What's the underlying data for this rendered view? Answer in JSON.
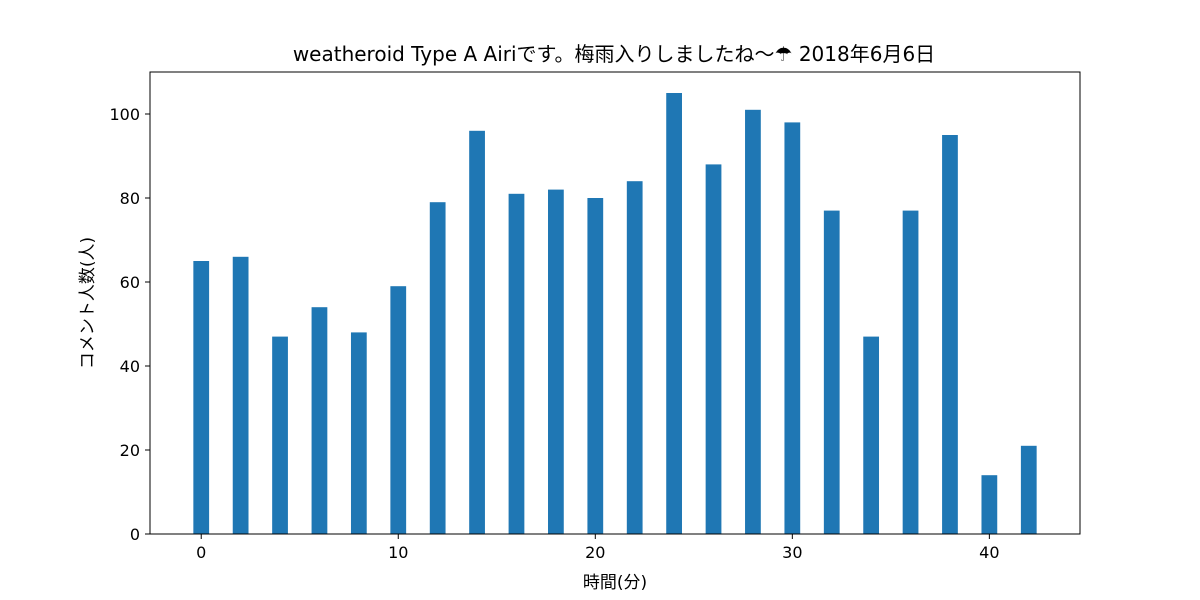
{
  "chart_data": {
    "type": "bar",
    "title": "weatheroid Type A  Airiです。梅雨入りしましたね〜☂     2018年6月6日",
    "xlabel": "時間(分)",
    "ylabel": "コメント人数(人)",
    "x": [
      0,
      2,
      4,
      6,
      8,
      10,
      12,
      14,
      16,
      18,
      20,
      22,
      24,
      26,
      28,
      30,
      32,
      34,
      36,
      38,
      40,
      42
    ],
    "values": [
      65,
      66,
      47,
      54,
      48,
      59,
      79,
      96,
      81,
      82,
      80,
      84,
      105,
      88,
      101,
      98,
      77,
      47,
      77,
      95,
      14,
      21
    ],
    "bar_width": 0.8,
    "xlim": [
      -2.6,
      44.6
    ],
    "ylim": [
      0,
      110
    ],
    "x_ticks": [
      0,
      10,
      20,
      30,
      40
    ],
    "y_ticks": [
      0,
      20,
      40,
      60,
      80,
      100
    ],
    "bar_color": "#1f77b4",
    "grid": false
  }
}
